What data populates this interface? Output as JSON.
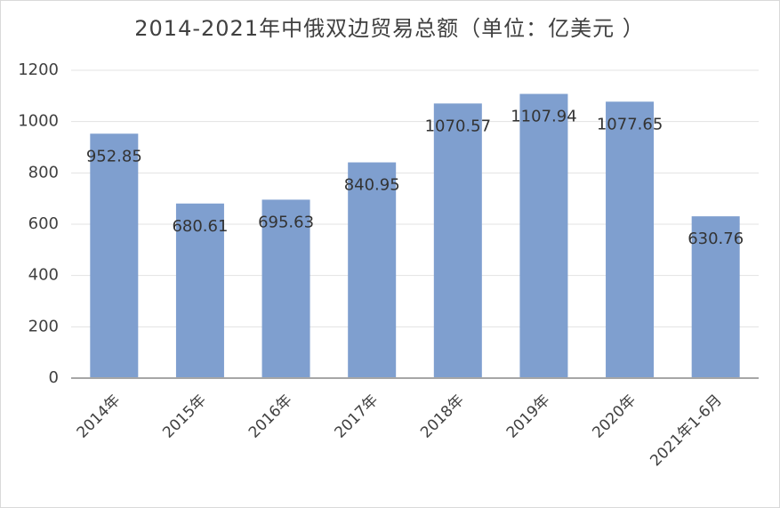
{
  "chart_data": {
    "type": "bar",
    "title": "2014-2021年中俄双边贸易总额（单位：亿美元 ）",
    "categories": [
      "2014年",
      "2015年",
      "2016年",
      "2017年",
      "2018年",
      "2019年",
      "2020年",
      "2021年1-6月"
    ],
    "values": [
      952.85,
      680.61,
      695.63,
      840.95,
      1070.57,
      1107.94,
      1077.65,
      630.76
    ],
    "color": "#7f9fcf",
    "ylim": [
      0,
      1200
    ],
    "yticks": [
      0,
      200,
      400,
      600,
      800,
      1000,
      1200
    ],
    "grid": true
  }
}
